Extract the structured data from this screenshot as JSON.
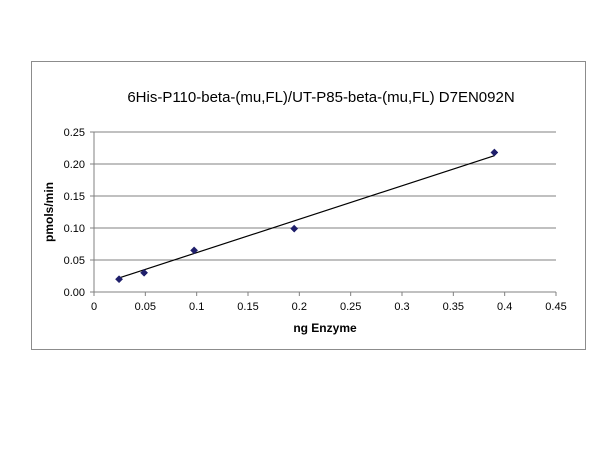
{
  "chart_data": {
    "type": "scatter",
    "title": "6His-P110-beta-(mu,FL)/UT-P85-beta-(mu,FL) D7EN092N",
    "xlabel": "ng Enzyme",
    "ylabel": "pmols/min",
    "xlim": [
      0,
      0.45
    ],
    "ylim": [
      0,
      0.25
    ],
    "x_ticks": [
      "0",
      "0.05",
      "0.1",
      "0.15",
      "0.2",
      "0.25",
      "0.3",
      "0.35",
      "0.4",
      "0.45"
    ],
    "y_ticks": [
      "0.00",
      "0.05",
      "0.10",
      "0.15",
      "0.20",
      "0.25"
    ],
    "grid": "horizontal",
    "legend": "none",
    "points": [
      {
        "x": 0.0244,
        "y": 0.02
      },
      {
        "x": 0.0488,
        "y": 0.03
      },
      {
        "x": 0.0975,
        "y": 0.065
      },
      {
        "x": 0.195,
        "y": 0.099
      },
      {
        "x": 0.39,
        "y": 0.218
      }
    ],
    "trendline": {
      "type": "linear",
      "x": [
        0.0244,
        0.39
      ],
      "y": [
        0.022,
        0.213
      ]
    },
    "colors": {
      "marker": "#1f1f6b",
      "line": "#000000",
      "grid": "#808080"
    }
  }
}
